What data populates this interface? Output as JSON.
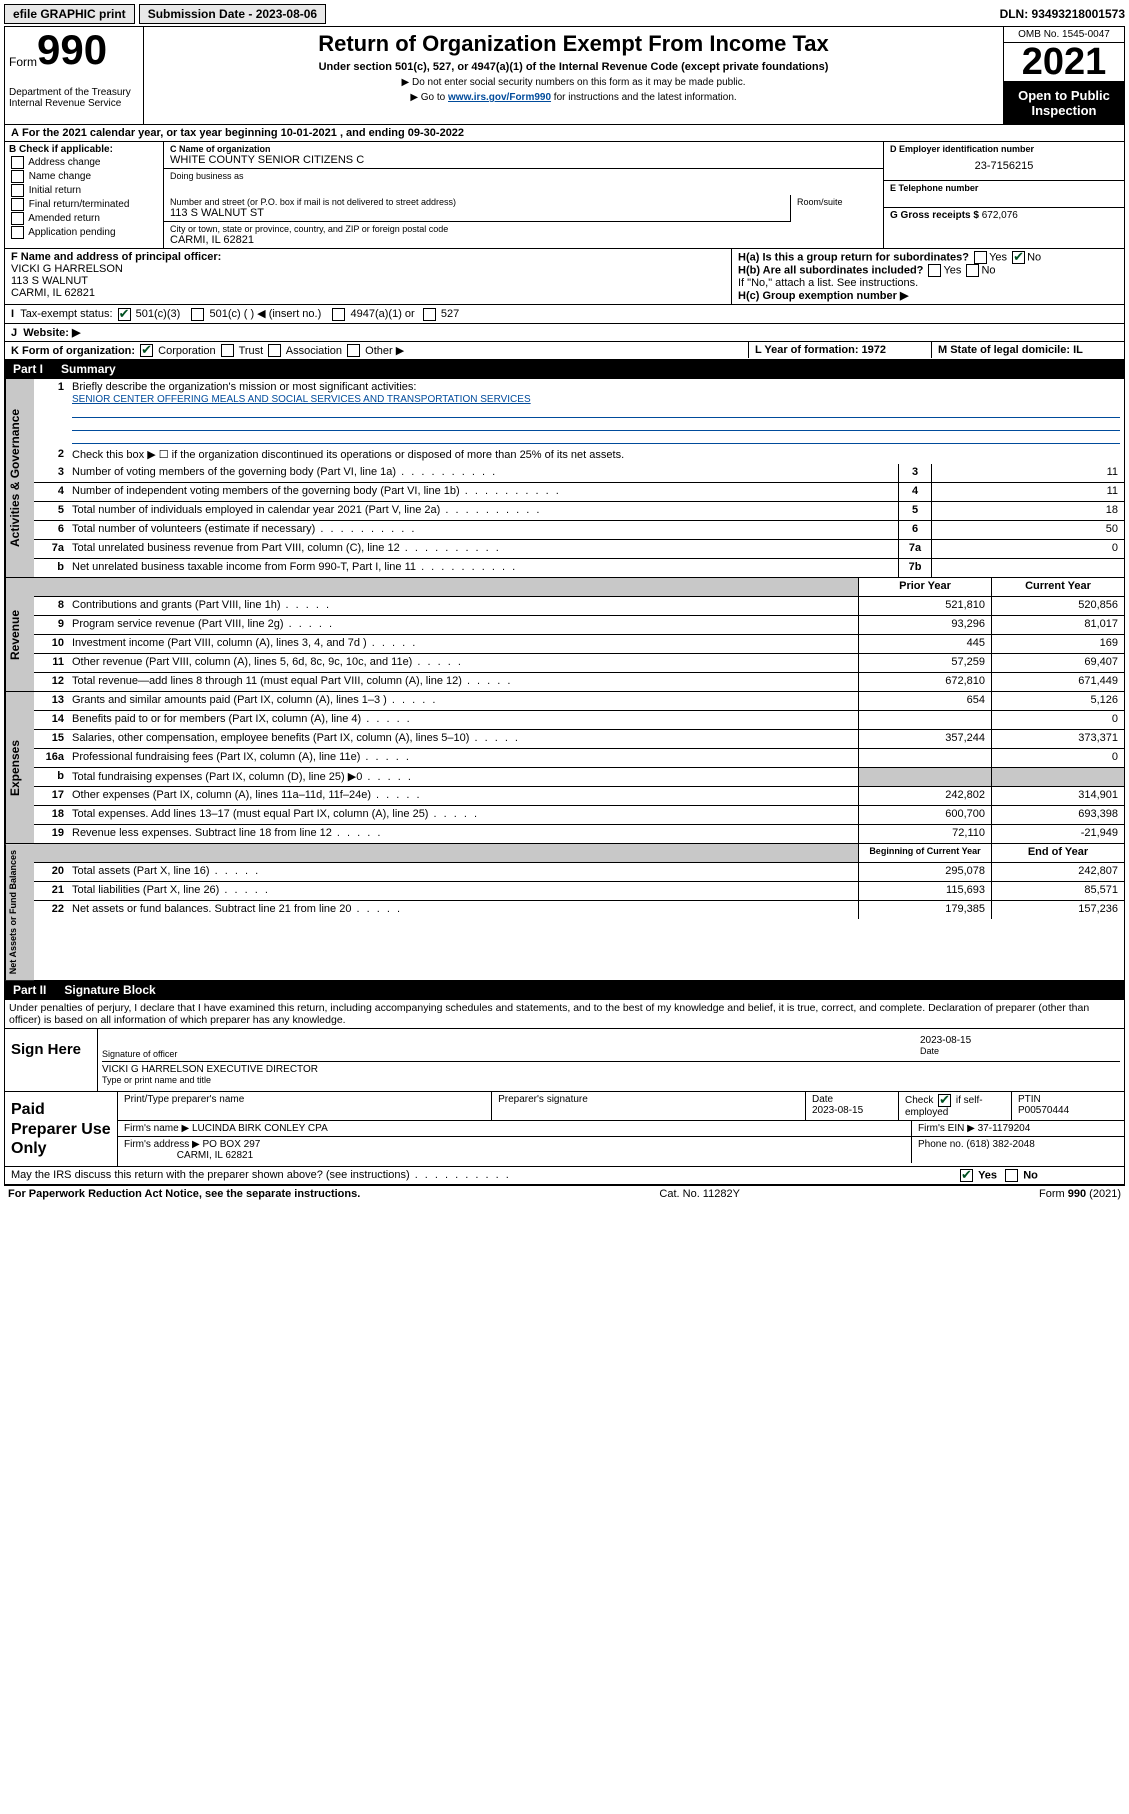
{
  "topbar": {
    "efile": "efile GRAPHIC print",
    "submission_label": "Submission Date - 2023-08-06",
    "dln": "DLN: 93493218001573"
  },
  "header": {
    "form_label": "Form",
    "form_num": "990",
    "dept": "Department of the Treasury\nInternal Revenue Service",
    "title": "Return of Organization Exempt From Income Tax",
    "subtitle": "Under section 501(c), 527, or 4947(a)(1) of the Internal Revenue Code (except private foundations)",
    "instr1": "Do not enter social security numbers on this form as it may be made public.",
    "instr2_pre": "Go to ",
    "instr2_link": "www.irs.gov/Form990",
    "instr2_post": " for instructions and the latest information.",
    "omb": "OMB No. 1545-0047",
    "taxyear": "2021",
    "open": "Open to Public Inspection"
  },
  "periodA": "For the 2021 calendar year, or tax year beginning 10-01-2021  , and ending 09-30-2022",
  "sectionB": {
    "header": "B Check if applicable:",
    "items": [
      "Address change",
      "Name change",
      "Initial return",
      "Final return/terminated",
      "Amended return",
      "Application pending"
    ]
  },
  "sectionC": {
    "name_label": "C Name of organization",
    "name": "WHITE COUNTY SENIOR CITIZENS C",
    "dba_label": "Doing business as",
    "addr_label": "Number and street (or P.O. box if mail is not delivered to street address)",
    "room_label": "Room/suite",
    "addr": "113 S WALNUT ST",
    "city_label": "City or town, state or province, country, and ZIP or foreign postal code",
    "city": "CARMI, IL  62821"
  },
  "sectionD": {
    "label": "D Employer identification number",
    "ein": "23-7156215"
  },
  "sectionE": {
    "label": "E Telephone number",
    "val": ""
  },
  "sectionG": {
    "label": "G Gross receipts $",
    "val": "672,076"
  },
  "sectionF": {
    "label": "F Name and address of principal officer:",
    "name": "VICKI G HARRELSON",
    "addr1": "113 S WALNUT",
    "addr2": "CARMI, IL  62821"
  },
  "sectionH": {
    "ha": "H(a)  Is this a group return for subordinates?",
    "hb": "H(b)  Are all subordinates included?",
    "hb_note": "If \"No,\" attach a list. See instructions.",
    "hc": "H(c)  Group exemption number ▶"
  },
  "lineI": {
    "label": "Tax-exempt status:",
    "opts": [
      "501(c)(3)",
      "501(c) (  ) ◀ (insert no.)",
      "4947(a)(1) or",
      "527"
    ]
  },
  "lineJ": {
    "label": "Website: ▶"
  },
  "lineK": {
    "label": "K Form of organization:",
    "opts": [
      "Corporation",
      "Trust",
      "Association",
      "Other ▶"
    ]
  },
  "lineL": {
    "label": "L Year of formation: 1972"
  },
  "lineM": {
    "label": "M State of legal domicile: IL"
  },
  "partI": {
    "tag": "Part I",
    "title": "Summary"
  },
  "summary": {
    "q1": "Briefly describe the organization's mission or most significant activities:",
    "mission": "SENIOR CENTER OFFERING MEALS AND SOCIAL SERVICES AND TRANSPORTATION SERVICES",
    "q2": "Check this box ▶ ☐  if the organization discontinued its operations or disposed of more than 25% of its net assets.",
    "rows_gov": [
      {
        "n": "3",
        "d": "Number of voting members of the governing body (Part VI, line 1a)",
        "box": "3",
        "v": "11"
      },
      {
        "n": "4",
        "d": "Number of independent voting members of the governing body (Part VI, line 1b)",
        "box": "4",
        "v": "11"
      },
      {
        "n": "5",
        "d": "Total number of individuals employed in calendar year 2021 (Part V, line 2a)",
        "box": "5",
        "v": "18"
      },
      {
        "n": "6",
        "d": "Total number of volunteers (estimate if necessary)",
        "box": "6",
        "v": "50"
      },
      {
        "n": "7a",
        "d": "Total unrelated business revenue from Part VIII, column (C), line 12",
        "box": "7a",
        "v": "0"
      },
      {
        "n": "b",
        "d": "Net unrelated business taxable income from Form 990-T, Part I, line 11",
        "box": "7b",
        "v": ""
      }
    ],
    "col_prior": "Prior Year",
    "col_current": "Current Year",
    "revenue": [
      {
        "n": "8",
        "d": "Contributions and grants (Part VIII, line 1h)",
        "p": "521,810",
        "c": "520,856"
      },
      {
        "n": "9",
        "d": "Program service revenue (Part VIII, line 2g)",
        "p": "93,296",
        "c": "81,017"
      },
      {
        "n": "10",
        "d": "Investment income (Part VIII, column (A), lines 3, 4, and 7d )",
        "p": "445",
        "c": "169"
      },
      {
        "n": "11",
        "d": "Other revenue (Part VIII, column (A), lines 5, 6d, 8c, 9c, 10c, and 11e)",
        "p": "57,259",
        "c": "69,407"
      },
      {
        "n": "12",
        "d": "Total revenue—add lines 8 through 11 (must equal Part VIII, column (A), line 12)",
        "p": "672,810",
        "c": "671,449"
      }
    ],
    "expenses": [
      {
        "n": "13",
        "d": "Grants and similar amounts paid (Part IX, column (A), lines 1–3 )",
        "p": "654",
        "c": "5,126"
      },
      {
        "n": "14",
        "d": "Benefits paid to or for members (Part IX, column (A), line 4)",
        "p": "",
        "c": "0"
      },
      {
        "n": "15",
        "d": "Salaries, other compensation, employee benefits (Part IX, column (A), lines 5–10)",
        "p": "357,244",
        "c": "373,371"
      },
      {
        "n": "16a",
        "d": "Professional fundraising fees (Part IX, column (A), line 11e)",
        "p": "",
        "c": "0"
      },
      {
        "n": "b",
        "d": "Total fundraising expenses (Part IX, column (D), line 25) ▶0",
        "p": "",
        "c": "",
        "shaded": true
      },
      {
        "n": "17",
        "d": "Other expenses (Part IX, column (A), lines 11a–11d, 11f–24e)",
        "p": "242,802",
        "c": "314,901"
      },
      {
        "n": "18",
        "d": "Total expenses. Add lines 13–17 (must equal Part IX, column (A), line 25)",
        "p": "600,700",
        "c": "693,398"
      },
      {
        "n": "19",
        "d": "Revenue less expenses. Subtract line 18 from line 12",
        "p": "72,110",
        "c": "-21,949"
      }
    ],
    "col_begin": "Beginning of Current Year",
    "col_end": "End of Year",
    "netassets": [
      {
        "n": "20",
        "d": "Total assets (Part X, line 16)",
        "p": "295,078",
        "c": "242,807"
      },
      {
        "n": "21",
        "d": "Total liabilities (Part X, line 26)",
        "p": "115,693",
        "c": "85,571"
      },
      {
        "n": "22",
        "d": "Net assets or fund balances. Subtract line 21 from line 20",
        "p": "179,385",
        "c": "157,236"
      }
    ]
  },
  "partII": {
    "tag": "Part II",
    "title": "Signature Block"
  },
  "declaration": "Under penalties of perjury, I declare that I have examined this return, including accompanying schedules and statements, and to the best of my knowledge and belief, it is true, correct, and complete. Declaration of preparer (other than officer) is based on all information of which preparer has any knowledge.",
  "sign": {
    "left": "Sign Here",
    "date": "2023-08-15",
    "sig_label": "Signature of officer",
    "date_label": "Date",
    "name": "VICKI G HARRELSON  EXECUTIVE DIRECTOR",
    "name_label": "Type or print name and title"
  },
  "paid": {
    "left": "Paid Preparer Use Only",
    "h1": "Print/Type preparer's name",
    "h2": "Preparer's signature",
    "h3": "Date",
    "h3v": "2023-08-15",
    "h4": "Check ☑ if self-employed",
    "h5": "PTIN",
    "h5v": "P00570444",
    "firm_name_label": "Firm's name    ▶",
    "firm_name": "LUCINDA BIRK CONLEY CPA",
    "firm_ein_label": "Firm's EIN ▶",
    "firm_ein": "37-1179204",
    "firm_addr_label": "Firm's address ▶",
    "firm_addr1": "PO BOX 297",
    "firm_addr2": "CARMI, IL  62821",
    "phone_label": "Phone no.",
    "phone": "(618) 382-2048"
  },
  "discuss": "May the IRS discuss this return with the preparer shown above? (see instructions)",
  "footer": {
    "left": "For Paperwork Reduction Act Notice, see the separate instructions.",
    "mid": "Cat. No. 11282Y",
    "right": "Form 990 (2021)"
  }
}
